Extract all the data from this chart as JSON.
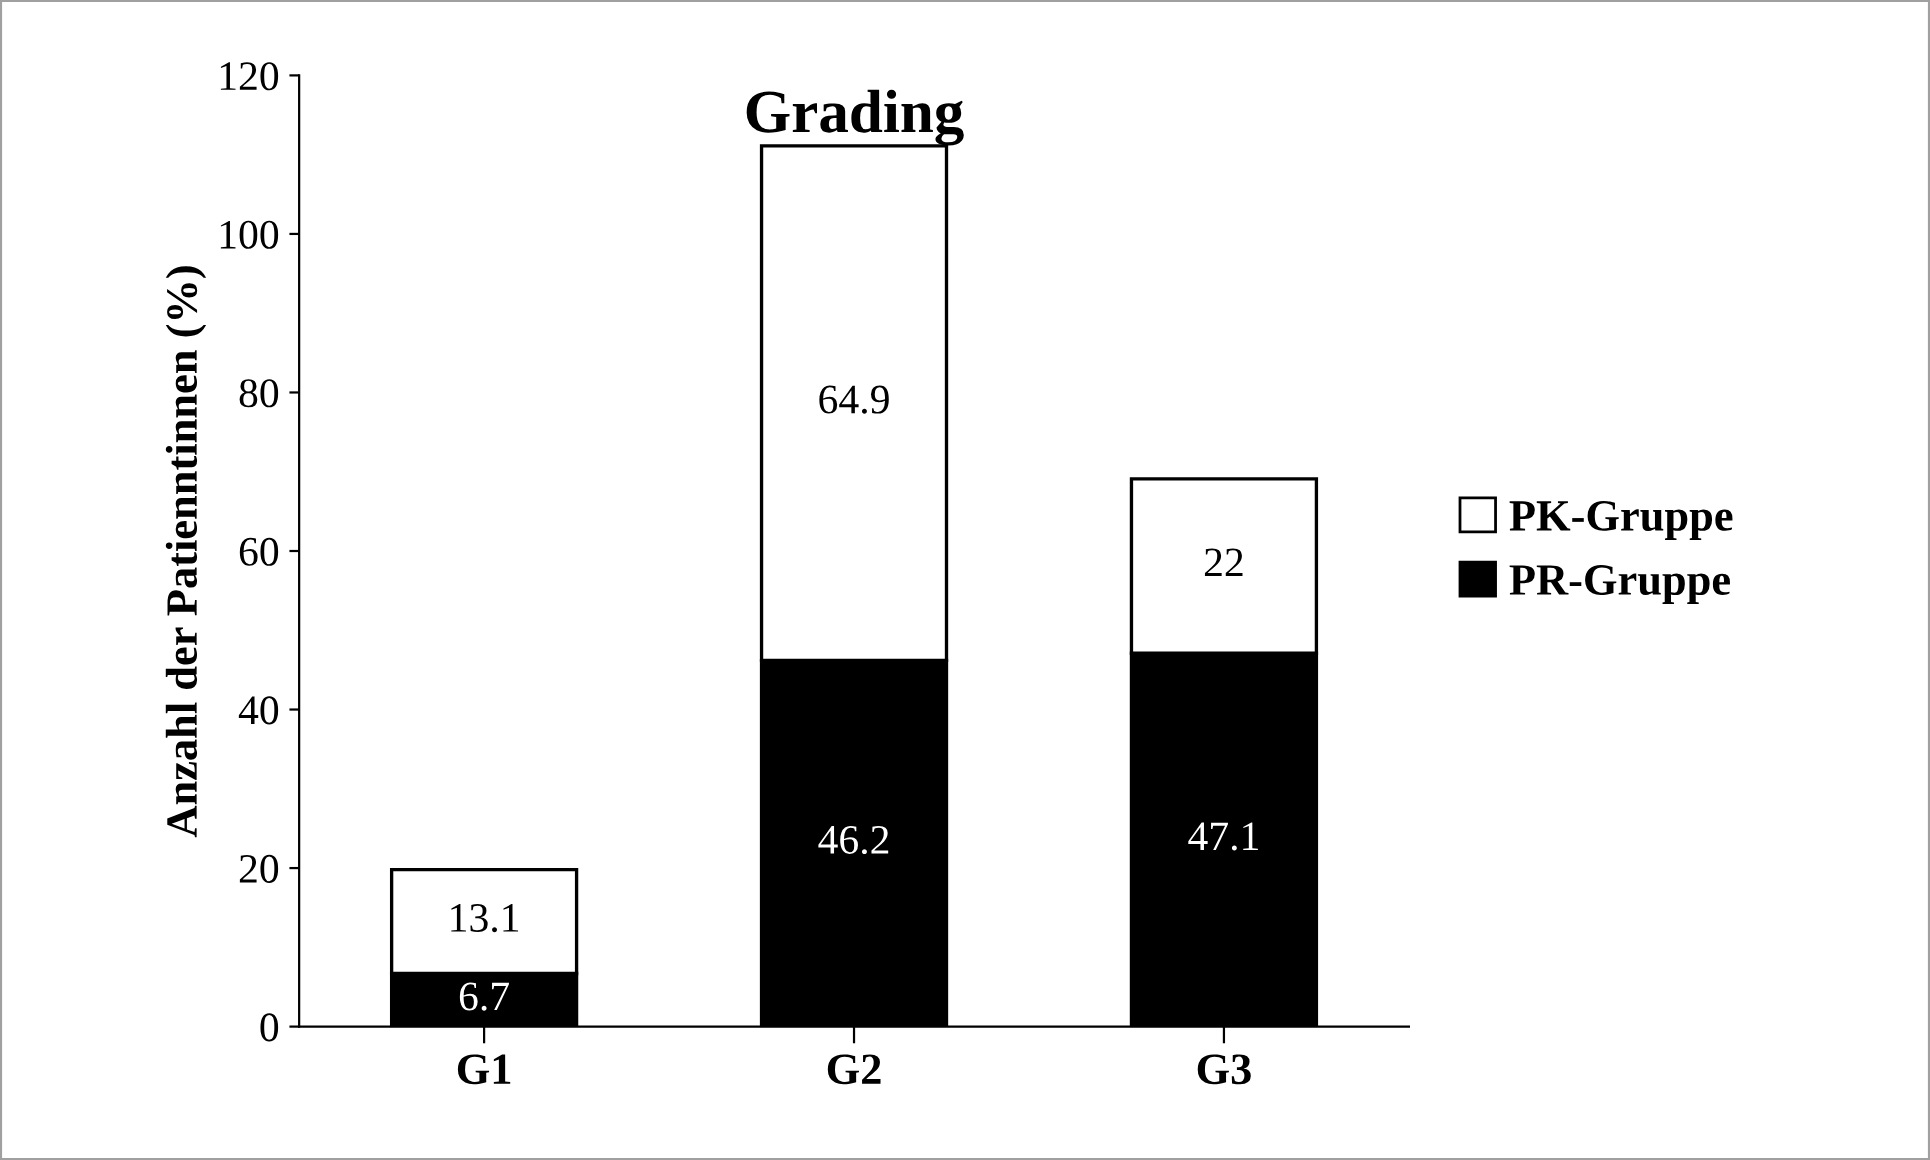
{
  "chart_data": {
    "type": "bar",
    "title": "Grading",
    "ylabel": "Anzahl der Patienntinnen (%)",
    "categories": [
      "G1",
      "G2",
      "G3"
    ],
    "series": [
      {
        "name": "PR-Gruppe",
        "color": "#000000",
        "values": [
          6.7,
          46.2,
          47.1
        ]
      },
      {
        "name": "PK-Gruppe",
        "color": "#ffffff",
        "values": [
          13.1,
          64.9,
          22
        ]
      }
    ],
    "stacked": true,
    "data_labels": true,
    "ylim": [
      0,
      120
    ],
    "yticks": [
      0,
      20,
      40,
      60,
      80,
      100,
      120
    ],
    "grid": false,
    "legend": "right"
  }
}
